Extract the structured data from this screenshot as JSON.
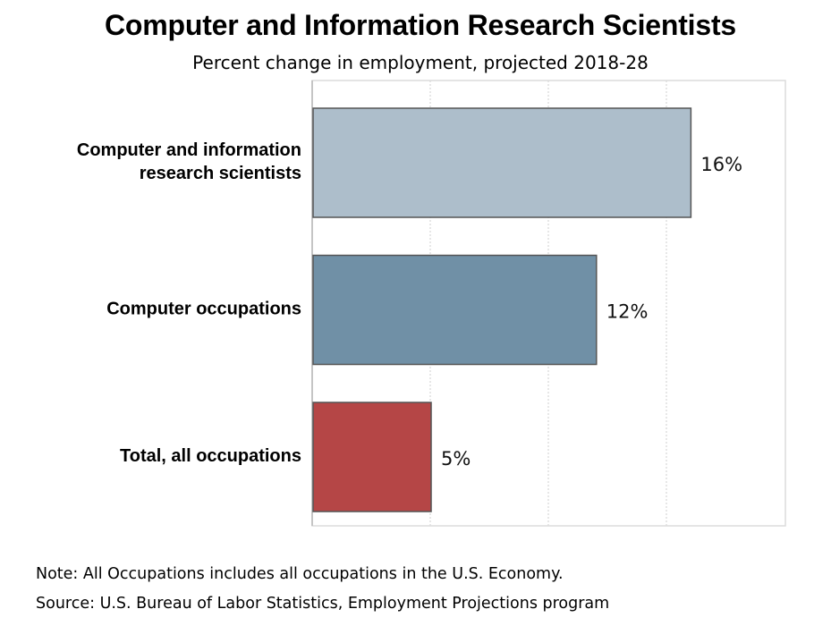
{
  "chart_data": {
    "type": "bar",
    "orientation": "horizontal",
    "title": "Computer and Information Research Scientists",
    "subtitle": "Percent change in employment, projected 2018-28",
    "categories": [
      [
        "Computer and information",
        "research scientists"
      ],
      [
        "Computer occupations"
      ],
      [
        "Total, all occupations"
      ]
    ],
    "values": [
      16,
      12,
      5
    ],
    "value_labels": [
      "16%",
      "12%",
      "5%"
    ],
    "bar_colors": [
      "#adbecb",
      "#7090a6",
      "#b54646"
    ],
    "xlim": [
      0,
      20
    ],
    "grid": "vertical dotted",
    "legend": "none"
  },
  "footer": {
    "note": "Note: All Occupations includes all occupations in the U.S. Economy.",
    "source": "Source: U.S. Bureau of Labor Statistics, Employment Projections program"
  }
}
